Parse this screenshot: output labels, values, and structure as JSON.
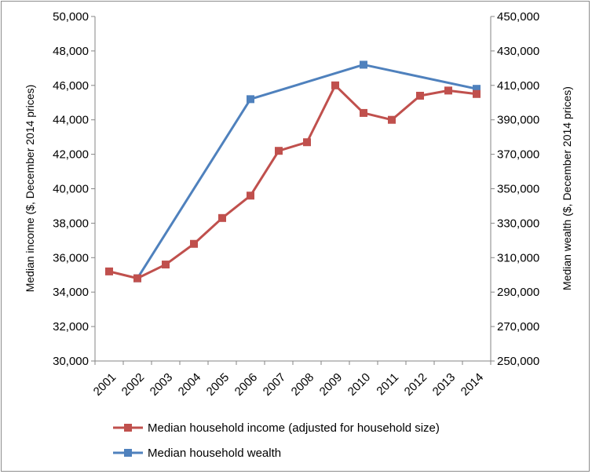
{
  "chart_data": {
    "type": "line",
    "categories": [
      "2001",
      "2002",
      "2003",
      "2004",
      "2005",
      "2006",
      "2007",
      "2008",
      "2009",
      "2010",
      "2011",
      "2012",
      "2013",
      "2014"
    ],
    "series": [
      {
        "name": "Median household income (adjusted for household size)",
        "axis": "left",
        "color": "#c0504d",
        "marker": "square",
        "values": [
          35200,
          34800,
          35600,
          36800,
          38300,
          39600,
          42200,
          42700,
          46000,
          44400,
          44000,
          45400,
          45700,
          45500
        ]
      },
      {
        "name": "Median household wealth",
        "axis": "right",
        "color": "#4f81bd",
        "marker": "square",
        "values": [
          null,
          298000,
          null,
          null,
          null,
          402000,
          null,
          null,
          null,
          422000,
          null,
          null,
          null,
          408000
        ]
      }
    ],
    "ylabel": "Median income ($, December 2014 prices)",
    "y2label": "Median wealth ($, December 2014 prices)",
    "ylim": [
      30000,
      50000
    ],
    "y2lim": [
      250000,
      450000
    ],
    "yticks": [
      "30,000",
      "32,000",
      "34,000",
      "36,000",
      "38,000",
      "40,000",
      "42,000",
      "44,000",
      "46,000",
      "48,000",
      "50,000"
    ],
    "y2ticks": [
      "250,000",
      "270,000",
      "290,000",
      "310,000",
      "330,000",
      "350,000",
      "370,000",
      "390,000",
      "410,000",
      "430,000",
      "450,000"
    ],
    "grid": false,
    "legend_position": "bottom"
  }
}
